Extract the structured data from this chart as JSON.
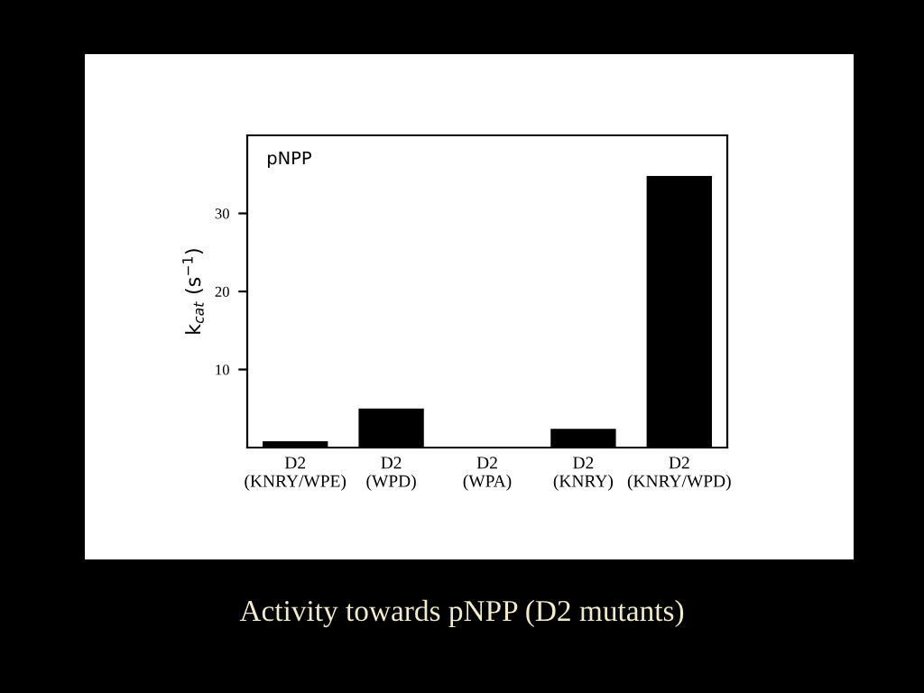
{
  "chart_data": {
    "type": "bar",
    "title": "Activity towards pNPP (D2 mutants)",
    "annotations": [
      "pNPP"
    ],
    "ylabel": "k$_{cat}$ (s$^{−1}$)",
    "categories": [
      "D2\n(KNRY/WPE)",
      "D2\n(WPD)",
      "D2\n(WPA)",
      "D2\n(KNRY)",
      "D2\n(KNRY/WPD)"
    ],
    "values": [
      0.8,
      5.0,
      0,
      2.4,
      34.8
    ],
    "color": "#000000",
    "ylim": [
      0,
      40
    ],
    "yticks": [
      10,
      20,
      30
    ],
    "grid": false
  }
}
